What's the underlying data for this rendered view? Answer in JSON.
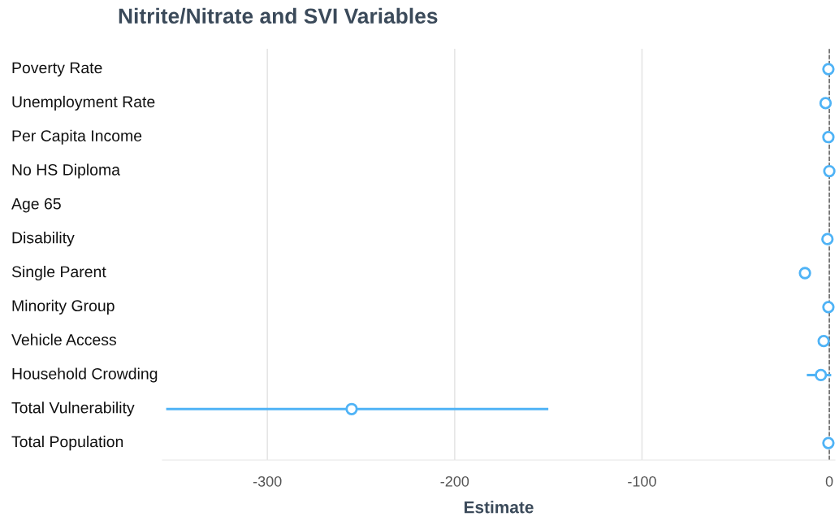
{
  "chart_data": {
    "type": "scatter",
    "orientation": "horizontal",
    "title": "Nitrite/Nitrate and SVI Variables",
    "xlabel": "Estimate",
    "categories": [
      "Poverty Rate",
      "Unemployment Rate",
      "Per Capita Income",
      "No HS Diploma",
      "Age 65",
      "Disability",
      "Single Parent",
      "Minority Group",
      "Vehicle Access",
      "Household Crowding",
      "Total Vulnerability",
      "Total Population"
    ],
    "series": [
      {
        "color": "#4fb3f6",
        "values": [
          -0.5,
          -2,
          -0.5,
          0,
          null,
          -1,
          -13,
          -0.5,
          -3,
          -4.5,
          -255,
          -0.5
        ],
        "errors": [
          null,
          null,
          null,
          null,
          null,
          null,
          null,
          null,
          null,
          [
            -12,
            1
          ],
          [
            -354,
            -150
          ],
          null
        ]
      }
    ],
    "xlim": [
      -356,
      3
    ],
    "xticks": [
      -300,
      -200,
      -100,
      0
    ],
    "grid": "x",
    "marker": "circle",
    "ref_lines": [
      {
        "axis": "x",
        "value": 0,
        "line_style": "dashed",
        "color": "#555555"
      }
    ]
  }
}
